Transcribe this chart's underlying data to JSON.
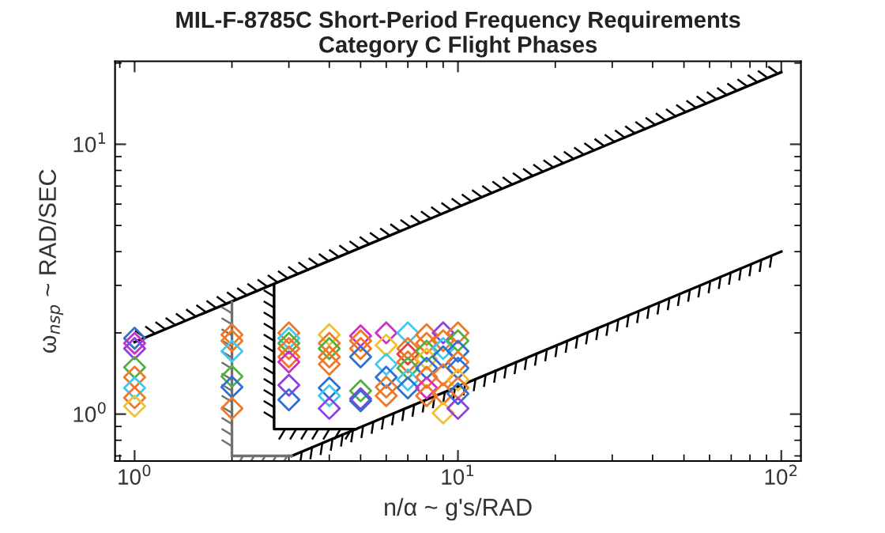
{
  "chart_data": {
    "type": "scatter",
    "title": "MIL-F-8785C Short-Period Frequency Requirements\nCategory C Flight Phases",
    "xlabel": "n/α ~ g's/RAD",
    "ylabel": "ω$_{nsp}$ ~ RAD/SEC",
    "log": "xy",
    "grid": false,
    "legend": false,
    "marker": "diamond",
    "xlim": [
      0.87,
      115
    ],
    "ylim": [
      0.67,
      20.3
    ],
    "xticks": [
      {
        "value": 1,
        "label": "10$^{0}$"
      },
      {
        "value": 10,
        "label": "10$^{1}$"
      },
      {
        "value": 100,
        "label": "10$^{2}$"
      }
    ],
    "yticks": [
      {
        "value": 1,
        "label": "10$^{0}$"
      },
      {
        "value": 10,
        "label": "10$^{1}$"
      }
    ],
    "series": [
      {
        "type": "line",
        "marker": "none",
        "color": "#000000",
        "x": [
          1,
          100
        ],
        "values": [
          1.85,
          18.5
        ]
      },
      {
        "type": "line",
        "marker": "none",
        "color": "#000000",
        "x": [
          3.06,
          100
        ],
        "values": [
          0.7,
          4.0
        ]
      },
      {
        "type": "line",
        "marker": "none",
        "color": "#000000",
        "x": [
          2.7,
          2.7,
          4.84
        ],
        "values": [
          3.0,
          0.88,
          0.88
        ]
      },
      {
        "type": "line",
        "marker": "none",
        "color": "#707070",
        "x": [
          2.0,
          2.0,
          3.06
        ],
        "values": [
          2.6,
          0.7,
          0.7
        ]
      },
      {
        "x": [
          1,
          1,
          1,
          1,
          1,
          1,
          1,
          1,
          2,
          2,
          2,
          2,
          2,
          2,
          3,
          3,
          3,
          3,
          3,
          3,
          3,
          3,
          4,
          4,
          4,
          4,
          4,
          4,
          4,
          4,
          5,
          5,
          5,
          5,
          5,
          5,
          5,
          6,
          6,
          6,
          6,
          6,
          6,
          7,
          7,
          7,
          7,
          7,
          7,
          7,
          8,
          8,
          8,
          8,
          8,
          8,
          8,
          8,
          9,
          9,
          9,
          9,
          9,
          9,
          9,
          10,
          10,
          10,
          10,
          10,
          10,
          10,
          10,
          10
        ],
        "values": [
          1.91,
          1.83,
          1.75,
          1.49,
          1.37,
          1.25,
          1.15,
          1.07,
          1.97,
          1.87,
          1.71,
          1.38,
          1.26,
          1.05,
          2.0,
          1.91,
          1.83,
          1.75,
          1.63,
          1.56,
          1.28,
          1.13,
          1.97,
          1.83,
          1.75,
          1.63,
          1.53,
          1.25,
          1.17,
          1.05,
          1.95,
          1.87,
          1.75,
          1.63,
          1.22,
          1.14,
          1.12,
          2.0,
          1.8,
          1.53,
          1.37,
          1.26,
          1.17,
          2.0,
          1.75,
          1.67,
          1.56,
          1.48,
          1.34,
          1.25,
          1.97,
          1.83,
          1.71,
          1.6,
          1.48,
          1.37,
          1.25,
          1.17,
          2.0,
          1.87,
          1.75,
          1.63,
          1.4,
          1.19,
          1.01,
          2.0,
          1.87,
          1.71,
          1.56,
          1.48,
          1.34,
          1.25,
          1.19,
          1.05
        ],
        "colors": [
          "#3070d0",
          "#d030c0",
          "#9040e0",
          "#50b040",
          "#f07828",
          "#40c8f0",
          "#f07828",
          "#f0c030",
          "#f07828",
          "#f07828",
          "#40c8f0",
          "#50b040",
          "#3070d0",
          "#f07828",
          "#f07828",
          "#40c8f0",
          "#50b040",
          "#f07828",
          "#f07828",
          "#d030c0",
          "#9040e0",
          "#3070d0",
          "#f0c030",
          "#f07828",
          "#50b040",
          "#f07828",
          "#f07828",
          "#3070d0",
          "#40c8f0",
          "#9040e0",
          "#d030c0",
          "#f07828",
          "#f07828",
          "#3070d0",
          "#50b040",
          "#9040e0",
          "#3070d0",
          "#d030c0",
          "#f0c030",
          "#40c8f0",
          "#3070d0",
          "#f07828",
          "#f07828",
          "#40c8f0",
          "#f07828",
          "#e04040",
          "#f07828",
          "#50b040",
          "#40c8f0",
          "#3070d0",
          "#f07828",
          "#f07828",
          "#50b040",
          "#f0c030",
          "#3070d0",
          "#f07828",
          "#d030c0",
          "#f07828",
          "#9040e0",
          "#f07828",
          "#40c8f0",
          "#3070d0",
          "#f07828",
          "#f07828",
          "#f0c030",
          "#f07828",
          "#50b040",
          "#3070d0",
          "#f07828",
          "#3070d0",
          "#f0c030",
          "#f07828",
          "#3070d0",
          "#9040e0"
        ]
      }
    ]
  }
}
